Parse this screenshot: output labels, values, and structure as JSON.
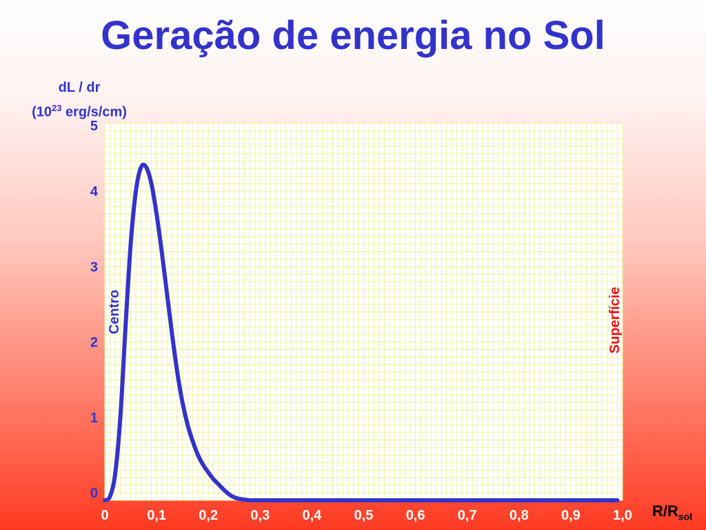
{
  "slide": {
    "title": "Geração de energia no Sol"
  },
  "chart_data": {
    "type": "line",
    "ylabel_line1": "dL / dr",
    "ylabel_line2_prefix": "(10",
    "ylabel_line2_sup": "23",
    "ylabel_line2_suffix": " erg/s/cm)",
    "xlabel_main": "R/R",
    "xlabel_sub": "sol",
    "xlim": [
      0,
      1.0
    ],
    "ylim": [
      0,
      5
    ],
    "x_tick_labels": [
      "0",
      "0,1",
      "0,2",
      "0,3",
      "0,4",
      "0,5",
      "0,6",
      "0,7",
      "0,8",
      "0,9",
      "1,0"
    ],
    "x_ticks": [
      0,
      0.1,
      0.2,
      0.3,
      0.4,
      0.5,
      0.6,
      0.7,
      0.8,
      0.9,
      1.0
    ],
    "y_tick_labels": [
      "0",
      "1",
      "2",
      "3",
      "4",
      "5"
    ],
    "y_ticks": [
      0,
      1,
      2,
      3,
      4,
      5
    ],
    "grid": true,
    "annotations": {
      "center": "Centro",
      "surface": "Superfície"
    },
    "colors": {
      "line": "#3333cc",
      "grid": "#f2f2a0",
      "plot_bg": "#ffffff",
      "title": "#3333cc",
      "center_label": "#3333cc",
      "surface_label": "#ee1111",
      "y_ticks": "#3333cc",
      "x_ticks": "#ffffff"
    },
    "series": [
      {
        "x": [
          0.0,
          0.01,
          0.02,
          0.03,
          0.04,
          0.05,
          0.06,
          0.07,
          0.08,
          0.09,
          0.1,
          0.11,
          0.12,
          0.13,
          0.14,
          0.15,
          0.16,
          0.17,
          0.18,
          0.19,
          0.2,
          0.21,
          0.22,
          0.23,
          0.24,
          0.25,
          0.26,
          0.27,
          0.28,
          0.29,
          0.3,
          0.35,
          0.4,
          0.5,
          0.6,
          0.7,
          0.8,
          0.9,
          0.99
        ],
        "y": [
          0.0,
          0.05,
          0.35,
          1.1,
          2.3,
          3.4,
          4.1,
          4.42,
          4.42,
          4.2,
          3.8,
          3.3,
          2.75,
          2.2,
          1.7,
          1.3,
          1.0,
          0.78,
          0.6,
          0.47,
          0.37,
          0.28,
          0.21,
          0.14,
          0.08,
          0.04,
          0.02,
          0.01,
          0.0,
          0.0,
          0.0,
          0.0,
          0.0,
          0.0,
          0.0,
          0.0,
          0.0,
          0.0,
          0.0
        ]
      }
    ]
  }
}
